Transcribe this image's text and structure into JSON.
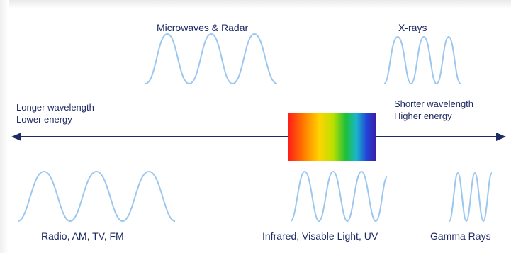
{
  "labels": {
    "microwaves_radar": "Microwaves & Radar",
    "x_rays": "X-rays",
    "longer_wavelength": "Longer wavelength",
    "lower_energy": "Lower energy",
    "shorter_wavelength": "Shorter wavelength",
    "higher_energy": "Higher energy",
    "radio": "Radio, AM, TV, FM",
    "infrared_visible_uv": "Infrared, Visable Light, UV",
    "gamma_rays": "Gamma Rays"
  },
  "colors": {
    "wave": "#9cc7ee",
    "axis": "#1d2a63",
    "text": "#1d2a63",
    "spectrum": [
      "#ff1a1a",
      "#ff7a00",
      "#ffd400",
      "#b8e000",
      "#1dbf3a",
      "#1ab7c9",
      "#2244d8",
      "#3a1ea8"
    ]
  }
}
